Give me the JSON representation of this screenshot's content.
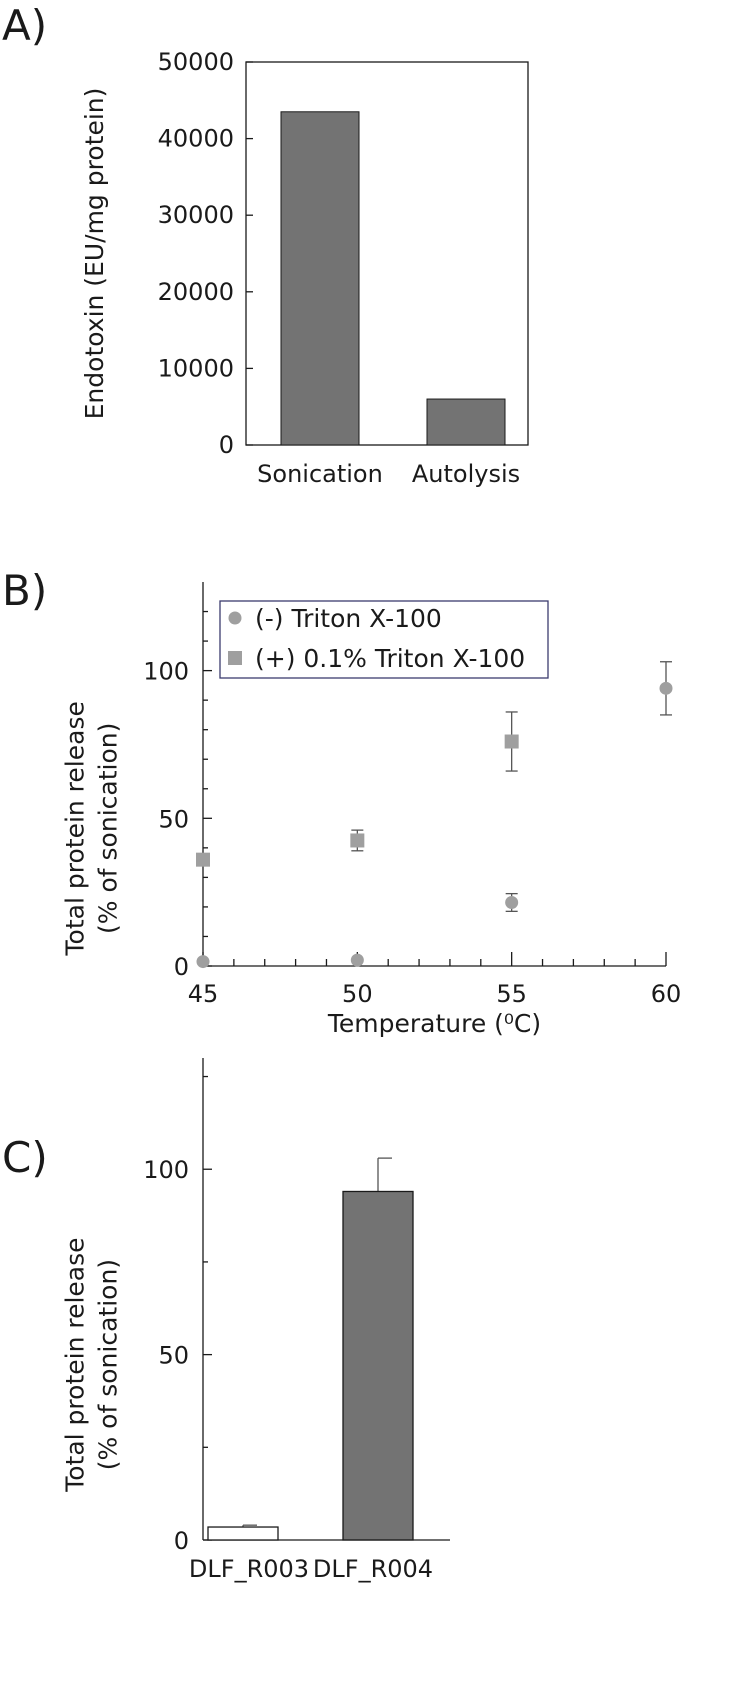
{
  "colors": {
    "bar_dark": "#737373",
    "bar_white": "#ffffff",
    "marker_gray": "#9f9f9f",
    "axis": "#1a1a1a",
    "legend_border": "#3b3b6e"
  },
  "panels": {
    "a": {
      "label": "A)"
    },
    "b": {
      "label": "B)"
    },
    "c": {
      "label": "C)"
    }
  },
  "chart_data": [
    {
      "type": "bar",
      "title": "",
      "xlabel": "",
      "ylabel": "Endotoxin (EU/mg protein)",
      "ylim": [
        0,
        50000
      ],
      "yticks": [
        0,
        10000,
        20000,
        30000,
        40000,
        50000
      ],
      "categories": [
        "Sonication",
        "Autolysis"
      ],
      "values": [
        43500,
        6000
      ],
      "grid": false
    },
    {
      "type": "scatter",
      "title": "",
      "xlabel": "Temperature (⁰C)",
      "ylabel": [
        "Total protein release",
        "(% of sonication)"
      ],
      "xlim": [
        45,
        60
      ],
      "ylim": [
        0,
        130
      ],
      "xticks": [
        45,
        50,
        55,
        60
      ],
      "yticks": [
        0,
        50,
        100
      ],
      "legend_position": "top-left",
      "grid": false,
      "series": [
        {
          "name": "(-) Triton X-100",
          "marker": "circle",
          "points": [
            {
              "x": 45,
              "y": 1.5,
              "err": 0
            },
            {
              "x": 50,
              "y": 2,
              "err": 0
            },
            {
              "x": 55,
              "y": 21.5,
              "err": 3
            },
            {
              "x": 60,
              "y": 94,
              "err": 9
            }
          ]
        },
        {
          "name": "(+) 0.1% Triton X-100",
          "marker": "square",
          "points": [
            {
              "x": 45,
              "y": 36,
              "err": 0
            },
            {
              "x": 50,
              "y": 42.5,
              "err": 3.5
            },
            {
              "x": 55,
              "y": 76,
              "err": 10
            }
          ]
        }
      ]
    },
    {
      "type": "bar",
      "title": "",
      "xlabel": "",
      "ylabel": [
        "Total protein release",
        "(% of sonication)"
      ],
      "ylim": [
        0,
        130
      ],
      "yticks": [
        0,
        50,
        100
      ],
      "categories": [
        "DLF_R003",
        "DLF_R004"
      ],
      "values": [
        3.5,
        94
      ],
      "errors": [
        0.5,
        9
      ],
      "bar_colors": [
        "#ffffff",
        "#737373"
      ],
      "grid": false
    }
  ]
}
